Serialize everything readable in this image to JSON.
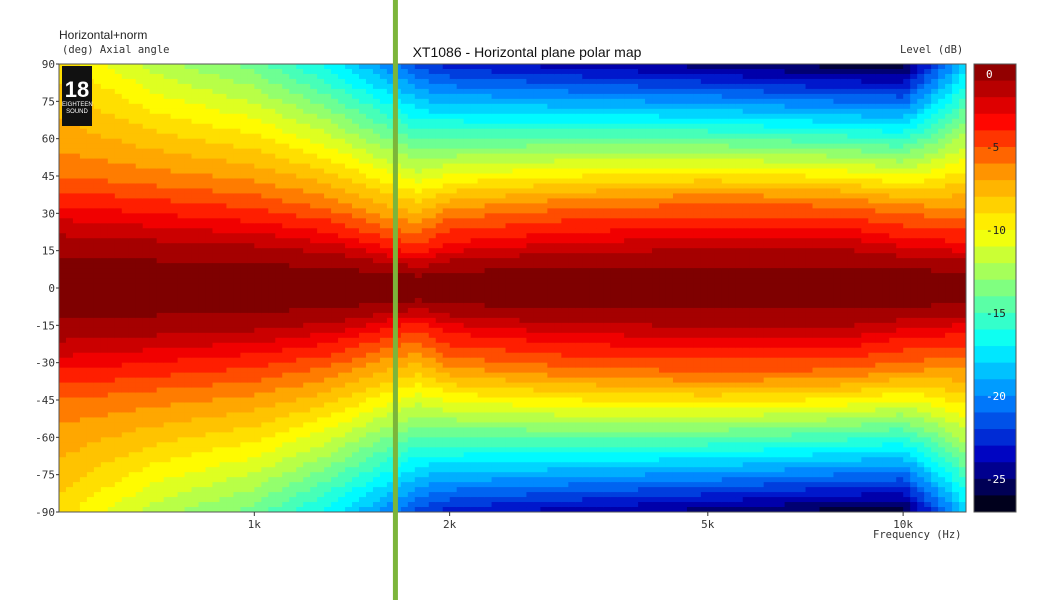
{
  "chart_data": {
    "type": "heatmap",
    "title": "XT1086 - Horizontal plane polar map",
    "y_header": "Horizontal+norm",
    "ylabel": "(deg)  Axial angle",
    "xlabel": "Frequency  (Hz)",
    "colorbar_label": "Level  (dB)",
    "x_scale": "log",
    "xlim": [
      500,
      12500
    ],
    "ylim": [
      -90,
      90
    ],
    "x_ticks": [
      {
        "value": 1000,
        "label": "1k"
      },
      {
        "value": 2000,
        "label": "2k"
      },
      {
        "value": 5000,
        "label": "5k"
      },
      {
        "value": 10000,
        "label": "10k"
      }
    ],
    "y_ticks": [
      "90",
      "75",
      "60",
      "45",
      "30",
      "15",
      "0",
      "-15",
      "-30",
      "-45",
      "-60",
      "-75",
      "-90"
    ],
    "colorbar_ticks": [
      "0",
      "-5",
      "-10",
      "-15",
      "-20",
      "-25"
    ],
    "colorbar_range": [
      0,
      -27
    ],
    "colormap": [
      "#7f0000",
      "#ff0000",
      "#ffa000",
      "#ffff00",
      "#80ff80",
      "#00ffff",
      "#0080ff",
      "#0000c0",
      "#000000"
    ],
    "frequencies_hz": [
      500,
      700,
      1000,
      1300,
      1600,
      1800,
      2000,
      3000,
      5000,
      8000,
      10000,
      12500
    ],
    "minus_3db_half_angle_deg": [
      30,
      27,
      24,
      20,
      14,
      12,
      16,
      20,
      22,
      22,
      18,
      16
    ],
    "minus_6db_half_angle_deg": [
      48,
      44,
      40,
      34,
      26,
      24,
      30,
      34,
      36,
      35,
      32,
      30
    ],
    "level_at_90deg_db": [
      -9,
      -12,
      -14,
      -17,
      -20,
      -22,
      -23,
      -24,
      -25,
      -26,
      -26,
      -18
    ],
    "marker_line": {
      "frequency_hz": 1650,
      "color": "#7cb53a"
    }
  },
  "logo": {
    "number": "18",
    "small_text": "EIGHTEEN SOUND"
  }
}
